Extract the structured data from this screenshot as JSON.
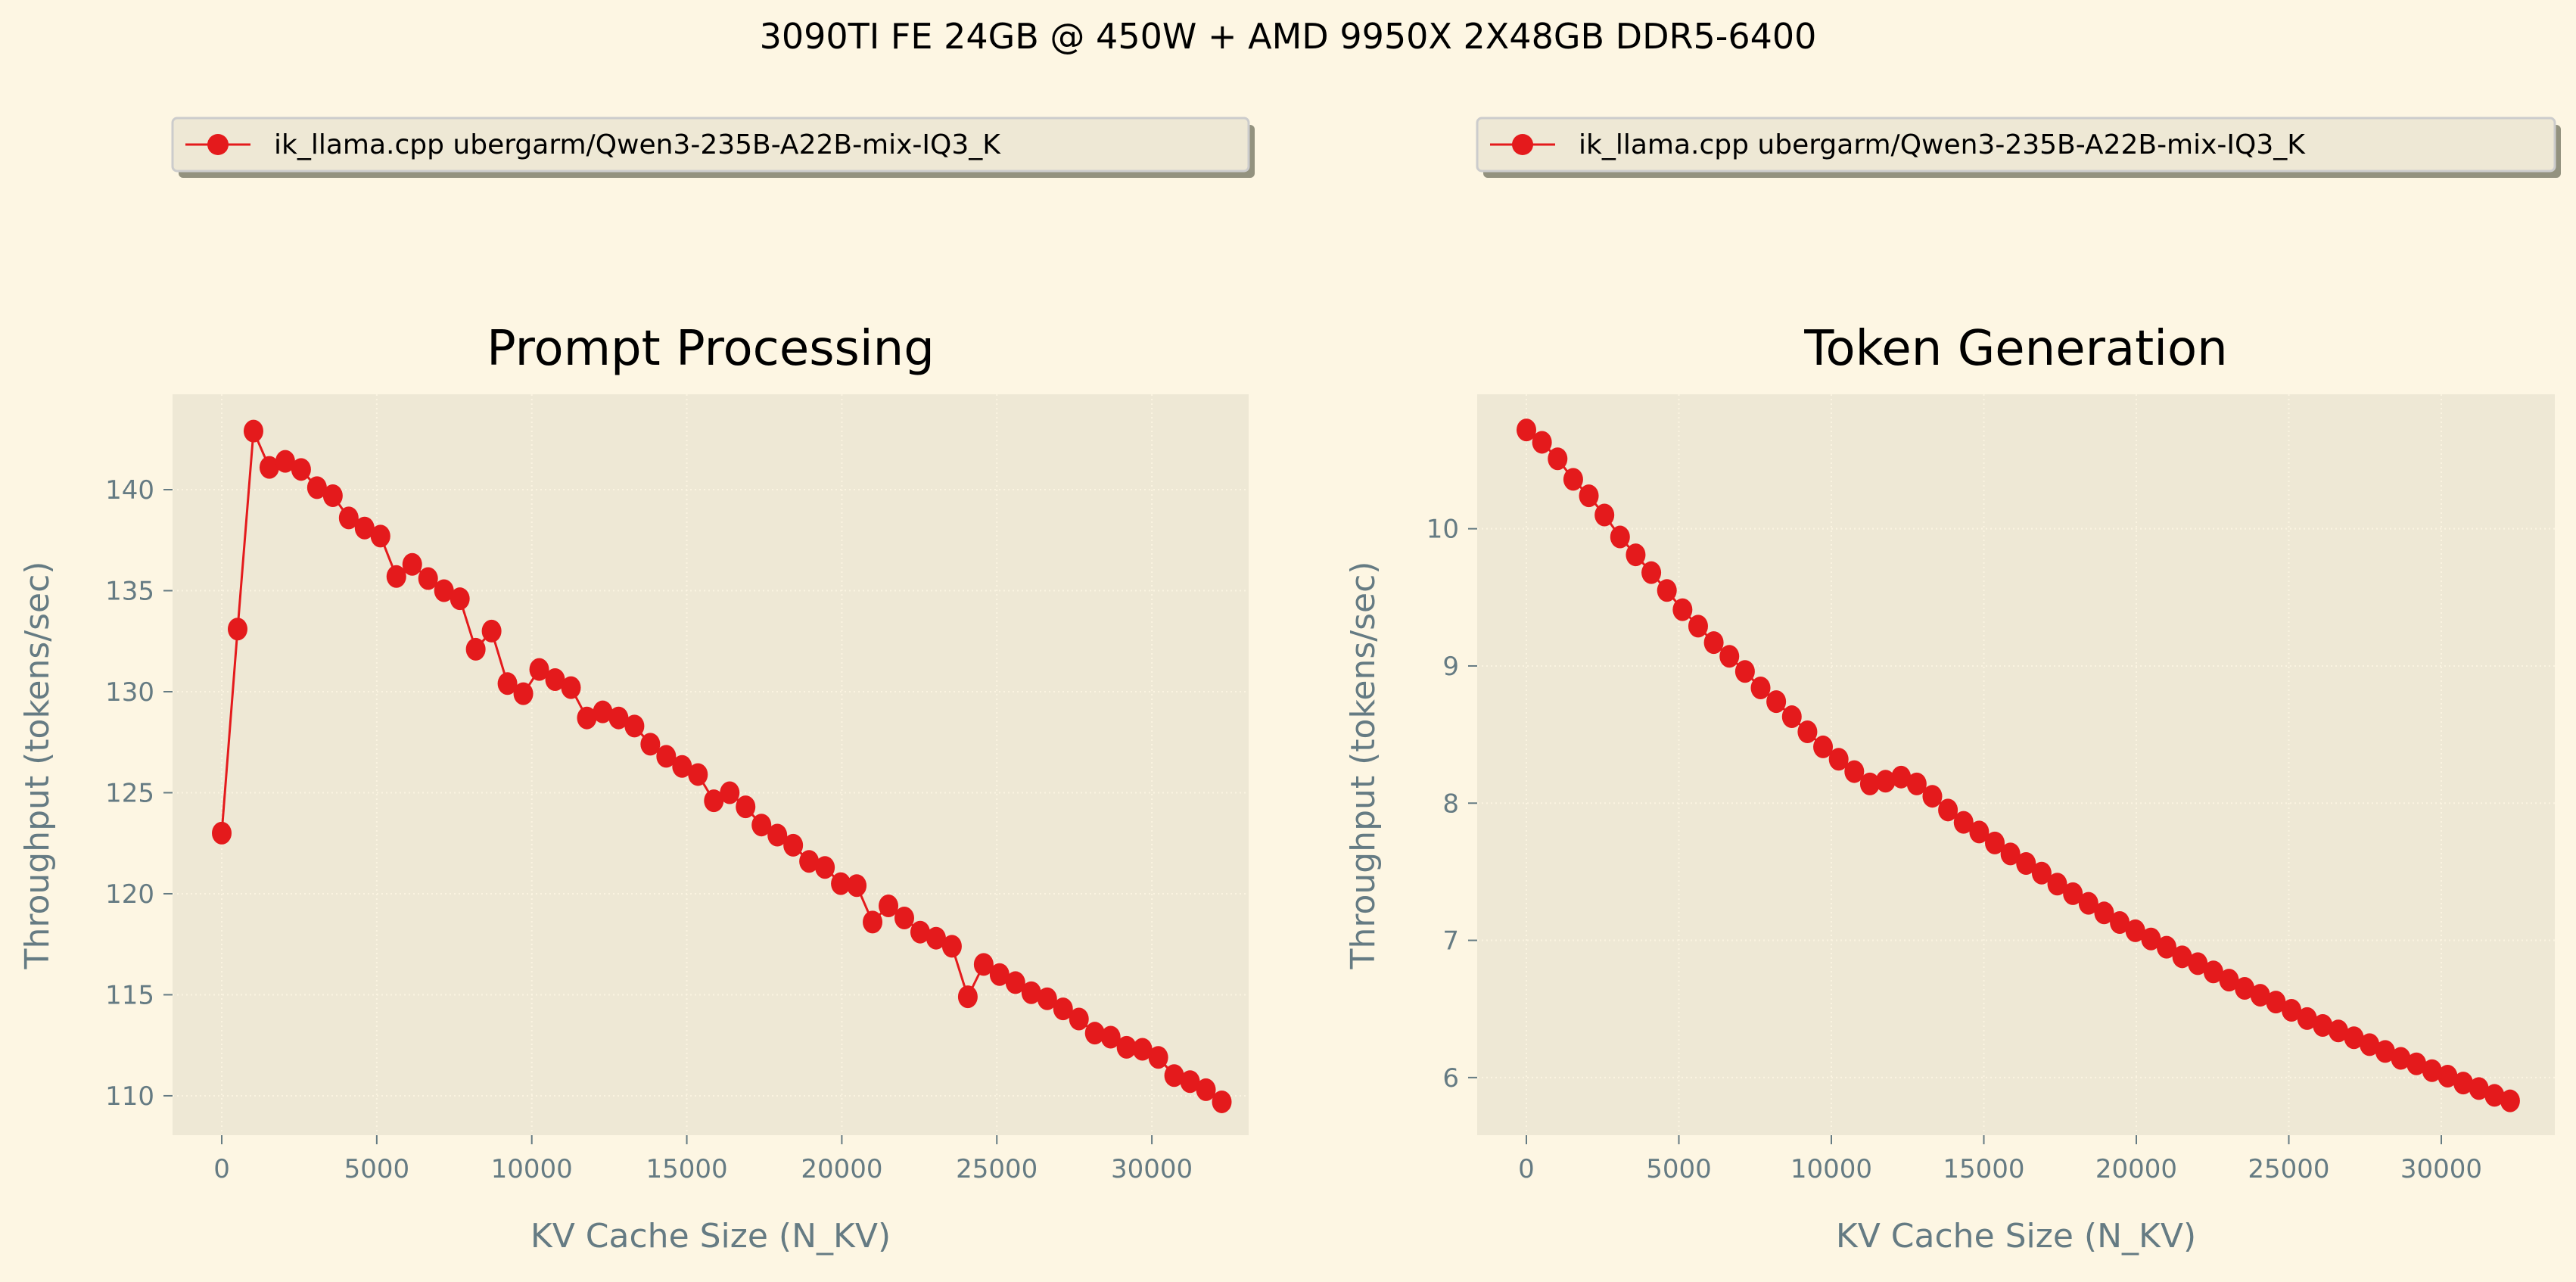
{
  "figure": {
    "suptitle": "3090TI FE 24GB @ 450W + AMD 9950X 2X48GB DDR5-6400",
    "colors": {
      "figure_bg": "#fdf6e3",
      "axes_bg": "#eee8d5",
      "series": "#e41a1c",
      "tick_text": "#657b83",
      "grid": "#fdf6e3",
      "legend_bg": "#eee8d5",
      "legend_edge": "#cccccc",
      "legend_shadow": "#93927f"
    }
  },
  "chart_data": [
    {
      "type": "line",
      "title": "Prompt Processing",
      "xlabel": "KV Cache Size (N_KV)",
      "ylabel": "Throughput (tokens/sec)",
      "legend": {
        "placement": "top-center-above",
        "entries": [
          "ik_llama.cpp ubergarm/Qwen3-235B-A22B-mix-IQ3_K"
        ]
      },
      "grid": true,
      "xlim": [
        -1587,
        33122
      ],
      "ylim": [
        108.05,
        144.72
      ],
      "xticks": [
        0,
        5000,
        10000,
        15000,
        20000,
        25000,
        30000
      ],
      "xtick_labels": [
        "0",
        "5000",
        "10000",
        "15000",
        "20000",
        "25000",
        "30000"
      ],
      "yticks": [
        110,
        115,
        120,
        125,
        130,
        135,
        140
      ],
      "ytick_labels": [
        "110",
        "115",
        "120",
        "125",
        "130",
        "135",
        "140"
      ],
      "series": [
        {
          "name": "ik_llama.cpp ubergarm/Qwen3-235B-A22B-mix-IQ3_K",
          "marker": "circle",
          "x": [
            0,
            512,
            1024,
            1536,
            2048,
            2560,
            3072,
            3584,
            4096,
            4608,
            5120,
            5632,
            6144,
            6656,
            7168,
            7680,
            8192,
            8704,
            9216,
            9728,
            10240,
            10752,
            11264,
            11776,
            12288,
            12800,
            13312,
            13824,
            14336,
            14848,
            15360,
            15872,
            16384,
            16896,
            17408,
            17920,
            18432,
            18944,
            19456,
            19968,
            20480,
            20992,
            21504,
            22016,
            22528,
            23040,
            23552,
            24064,
            24576,
            25088,
            25600,
            26112,
            26624,
            27136,
            27648,
            28160,
            28672,
            29184,
            29696,
            30208,
            30720,
            31232,
            31744,
            32256
          ],
          "y": [
            123.0,
            133.1,
            142.9,
            141.1,
            141.4,
            141.0,
            140.1,
            139.7,
            138.6,
            138.1,
            137.7,
            135.7,
            136.3,
            135.6,
            135.0,
            134.6,
            132.1,
            133.0,
            130.4,
            129.9,
            131.1,
            130.6,
            130.2,
            128.7,
            129.0,
            128.7,
            128.3,
            127.4,
            126.8,
            126.3,
            125.9,
            124.6,
            125.0,
            124.3,
            123.4,
            122.9,
            122.4,
            121.6,
            121.3,
            120.5,
            120.4,
            118.6,
            119.4,
            118.8,
            118.1,
            117.8,
            117.4,
            114.9,
            116.5,
            116.0,
            115.6,
            115.1,
            114.8,
            114.3,
            113.8,
            113.1,
            112.9,
            112.4,
            112.3,
            111.9,
            111.0,
            110.7,
            110.3,
            109.7
          ]
        }
      ]
    },
    {
      "type": "line",
      "title": "Token Generation",
      "xlabel": "KV Cache Size (N_KV)",
      "ylabel": "Throughput (tokens/sec)",
      "legend": {
        "placement": "top-center-above",
        "entries": [
          "ik_llama.cpp ubergarm/Qwen3-235B-A22B-mix-IQ3_K"
        ]
      },
      "grid": true,
      "xlim": [
        -1613,
        33722
      ],
      "ylim": [
        5.58,
        10.98
      ],
      "xticks": [
        0,
        5000,
        10000,
        15000,
        20000,
        25000,
        30000
      ],
      "xtick_labels": [
        "0",
        "5000",
        "10000",
        "15000",
        "20000",
        "25000",
        "30000"
      ],
      "yticks": [
        6,
        7,
        8,
        9,
        10
      ],
      "ytick_labels": [
        "6",
        "7",
        "8",
        "9",
        "10"
      ],
      "series": [
        {
          "name": "ik_llama.cpp ubergarm/Qwen3-235B-A22B-mix-IQ3_K",
          "marker": "circle",
          "x": [
            0,
            512,
            1024,
            1536,
            2048,
            2560,
            3072,
            3584,
            4096,
            4608,
            5120,
            5632,
            6144,
            6656,
            7168,
            7680,
            8192,
            8704,
            9216,
            9728,
            10240,
            10752,
            11264,
            11776,
            12288,
            12800,
            13312,
            13824,
            14336,
            14848,
            15360,
            15872,
            16384,
            16896,
            17408,
            17920,
            18432,
            18944,
            19456,
            19968,
            20480,
            20992,
            21504,
            22016,
            22528,
            23040,
            23552,
            24064,
            24576,
            25088,
            25600,
            26112,
            26624,
            27136,
            27648,
            28160,
            28672,
            29184,
            29696,
            30208,
            30720,
            31232,
            31744,
            32256
          ],
          "y": [
            10.72,
            10.63,
            10.51,
            10.36,
            10.24,
            10.1,
            9.94,
            9.81,
            9.68,
            9.55,
            9.41,
            9.29,
            9.17,
            9.07,
            8.96,
            8.84,
            8.74,
            8.63,
            8.52,
            8.41,
            8.32,
            8.23,
            8.14,
            8.16,
            8.19,
            8.14,
            8.05,
            7.95,
            7.86,
            7.79,
            7.71,
            7.63,
            7.56,
            7.49,
            7.41,
            7.34,
            7.27,
            7.2,
            7.13,
            7.07,
            7.01,
            6.95,
            6.88,
            6.83,
            6.77,
            6.71,
            6.65,
            6.6,
            6.55,
            6.49,
            6.43,
            6.38,
            6.34,
            6.29,
            6.24,
            6.19,
            6.14,
            6.1,
            6.05,
            6.01,
            5.96,
            5.92,
            5.87,
            5.83
          ]
        }
      ]
    }
  ]
}
